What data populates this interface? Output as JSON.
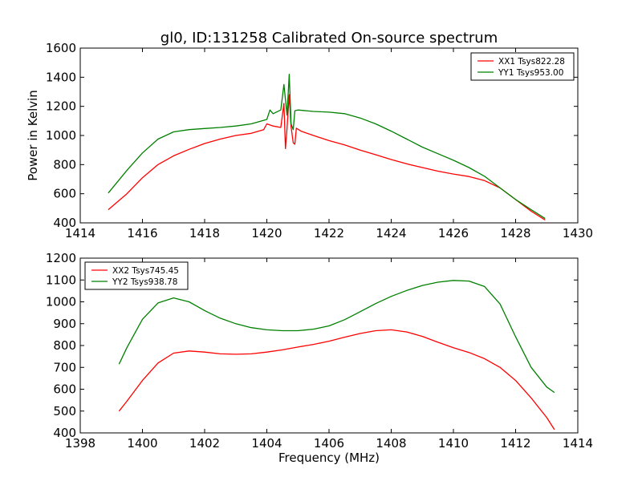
{
  "chart_data": [
    {
      "type": "line",
      "title": "gl0, ID:131258 Calibrated On-source spectrum",
      "xlabel": "",
      "ylabel": "Power in Kelvin",
      "xlim": [
        1414,
        1430
      ],
      "ylim": [
        400,
        1600
      ],
      "xticks": [
        "1414",
        "1416",
        "1418",
        "1420",
        "1422",
        "1424",
        "1426",
        "1428",
        "1430"
      ],
      "yticks": [
        "400",
        "600",
        "800",
        "1000",
        "1200",
        "1400",
        "1600"
      ],
      "legend_position": "top-right",
      "grid": false,
      "series": [
        {
          "name": "XX1 Tsys822.28",
          "color": "#ff0000",
          "x": [
            1414.9,
            1415.5,
            1416.0,
            1416.5,
            1417.0,
            1417.5,
            1418.0,
            1418.5,
            1419.0,
            1419.5,
            1419.9,
            1420.0,
            1420.2,
            1420.45,
            1420.55,
            1420.6,
            1420.65,
            1420.72,
            1420.78,
            1420.85,
            1420.9,
            1420.95,
            1421.1,
            1421.5,
            1422.0,
            1422.5,
            1423.0,
            1423.5,
            1424.0,
            1424.5,
            1425.0,
            1425.5,
            1426.0,
            1426.5,
            1427.0,
            1427.5,
            1428.0,
            1428.5,
            1428.95
          ],
          "y": [
            490,
            600,
            710,
            800,
            860,
            905,
            945,
            975,
            1000,
            1015,
            1040,
            1080,
            1065,
            1055,
            1220,
            910,
            1050,
            1280,
            1060,
            950,
            940,
            1050,
            1030,
            1000,
            965,
            935,
            900,
            868,
            835,
            805,
            780,
            755,
            735,
            718,
            690,
            640,
            560,
            480,
            420
          ]
        },
        {
          "name": "YY1 Tsys953.00",
          "color": "#008000",
          "x": [
            1414.9,
            1415.5,
            1416.0,
            1416.5,
            1417.0,
            1417.5,
            1418.0,
            1418.5,
            1419.0,
            1419.5,
            1420.0,
            1420.1,
            1420.2,
            1420.45,
            1420.55,
            1420.65,
            1420.72,
            1420.78,
            1420.85,
            1420.9,
            1421.0,
            1421.5,
            1422.0,
            1422.5,
            1423.0,
            1423.5,
            1424.0,
            1424.5,
            1425.0,
            1425.5,
            1426.0,
            1426.5,
            1427.0,
            1427.5,
            1428.0,
            1428.5,
            1428.95
          ],
          "y": [
            605,
            760,
            880,
            975,
            1025,
            1040,
            1048,
            1055,
            1065,
            1080,
            1110,
            1175,
            1150,
            1175,
            1350,
            1140,
            1420,
            1080,
            1040,
            1170,
            1175,
            1165,
            1160,
            1150,
            1120,
            1080,
            1030,
            975,
            920,
            875,
            830,
            780,
            720,
            640,
            560,
            490,
            430
          ]
        }
      ]
    },
    {
      "type": "line",
      "title": "",
      "xlabel": "Frequency (MHz)",
      "ylabel": "",
      "xlim": [
        1398,
        1414
      ],
      "ylim": [
        400,
        1200
      ],
      "xticks": [
        "1398",
        "1400",
        "1402",
        "1404",
        "1406",
        "1408",
        "1410",
        "1412",
        "1414"
      ],
      "yticks": [
        "400",
        "500",
        "600",
        "700",
        "800",
        "900",
        "1000",
        "1100",
        "1200"
      ],
      "legend_position": "top-left",
      "grid": false,
      "series": [
        {
          "name": "XX2 Tsys745.45",
          "color": "#ff0000",
          "x": [
            1399.25,
            1399.5,
            1400.0,
            1400.5,
            1401.0,
            1401.5,
            1402.0,
            1402.5,
            1403.0,
            1403.5,
            1404.0,
            1404.5,
            1405.0,
            1405.5,
            1406.0,
            1406.5,
            1407.0,
            1407.5,
            1408.0,
            1408.5,
            1409.0,
            1409.5,
            1410.0,
            1410.5,
            1411.0,
            1411.5,
            1412.0,
            1412.5,
            1413.0,
            1413.25
          ],
          "y": [
            500,
            545,
            640,
            720,
            765,
            775,
            770,
            762,
            760,
            762,
            770,
            780,
            793,
            805,
            820,
            838,
            855,
            868,
            872,
            862,
            842,
            815,
            790,
            768,
            740,
            700,
            640,
            560,
            470,
            415
          ]
        },
        {
          "name": "YY2 Tsys938.78",
          "color": "#008000",
          "x": [
            1399.25,
            1399.5,
            1400.0,
            1400.5,
            1401.0,
            1401.5,
            1402.0,
            1402.5,
            1403.0,
            1403.5,
            1404.0,
            1404.5,
            1405.0,
            1405.5,
            1406.0,
            1406.5,
            1407.0,
            1407.5,
            1408.0,
            1408.5,
            1409.0,
            1409.5,
            1410.0,
            1410.5,
            1411.0,
            1411.5,
            1412.0,
            1412.5,
            1413.0,
            1413.25
          ],
          "y": [
            715,
            790,
            920,
            995,
            1018,
            1000,
            960,
            925,
            900,
            882,
            872,
            868,
            868,
            875,
            890,
            918,
            955,
            992,
            1025,
            1052,
            1075,
            1090,
            1098,
            1095,
            1070,
            990,
            840,
            700,
            610,
            585
          ]
        }
      ]
    }
  ]
}
